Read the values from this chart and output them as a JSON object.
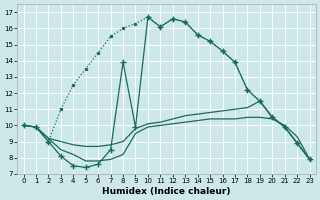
{
  "xlabel": "Humidex (Indice chaleur)",
  "x_ticks": [
    0,
    1,
    2,
    3,
    4,
    5,
    6,
    7,
    8,
    9,
    10,
    11,
    12,
    13,
    14,
    15,
    16,
    17,
    18,
    19,
    20,
    21,
    22,
    23
  ],
  "y_ticks": [
    7,
    8,
    9,
    10,
    11,
    12,
    13,
    14,
    15,
    16,
    17
  ],
  "xlim": [
    -0.5,
    23.5
  ],
  "ylim": [
    7.0,
    17.5
  ],
  "bg_color": "#cce8e8",
  "grid_color": "#ffffff",
  "line_color": "#1a6b60",
  "series": [
    {
      "x": [
        0,
        1,
        2,
        3,
        4,
        5,
        6,
        7,
        8,
        9,
        10,
        11,
        12,
        13,
        14,
        15,
        16,
        17,
        18,
        19,
        20,
        21,
        22,
        23
      ],
      "y": [
        10.0,
        9.9,
        9.0,
        11.0,
        12.5,
        13.5,
        14.5,
        15.5,
        16.0,
        16.3,
        16.7,
        16.1,
        16.6,
        16.4,
        15.6,
        15.2,
        14.6,
        13.9,
        12.2,
        11.5,
        10.5,
        9.9,
        8.9,
        7.9
      ],
      "marker": ".",
      "markersize": 3,
      "linestyle": ":"
    },
    {
      "x": [
        0,
        1,
        2,
        3,
        4,
        5,
        6,
        7,
        8,
        9,
        10,
        11,
        12,
        13,
        14,
        15,
        16,
        17,
        18,
        19,
        20,
        21,
        22,
        23
      ],
      "y": [
        10.0,
        9.9,
        9.0,
        8.1,
        7.5,
        7.4,
        7.6,
        8.5,
        13.9,
        9.9,
        16.7,
        16.1,
        16.6,
        16.4,
        15.6,
        15.2,
        14.6,
        13.9,
        12.2,
        11.5,
        10.5,
        9.9,
        8.9,
        7.9
      ],
      "marker": "+",
      "markersize": 4,
      "linestyle": "-"
    },
    {
      "x": [
        0,
        1,
        2,
        3,
        4,
        5,
        6,
        7,
        8,
        9,
        10,
        11,
        12,
        13,
        14,
        15,
        16,
        17,
        18,
        19,
        20,
        21,
        22,
        23
      ],
      "y": [
        10.0,
        9.9,
        9.2,
        9.0,
        8.8,
        8.7,
        8.7,
        8.8,
        9.0,
        9.8,
        10.1,
        10.2,
        10.4,
        10.6,
        10.7,
        10.8,
        10.9,
        11.0,
        11.1,
        11.5,
        10.5,
        9.9,
        8.9,
        7.9
      ],
      "marker": null,
      "markersize": 0,
      "linestyle": "-"
    },
    {
      "x": [
        0,
        1,
        2,
        3,
        4,
        5,
        6,
        7,
        8,
        9,
        10,
        11,
        12,
        13,
        14,
        15,
        16,
        17,
        18,
        19,
        20,
        21,
        22,
        23
      ],
      "y": [
        10.0,
        9.9,
        9.2,
        8.5,
        8.2,
        7.8,
        7.8,
        7.9,
        8.2,
        9.5,
        9.9,
        10.0,
        10.1,
        10.2,
        10.3,
        10.4,
        10.4,
        10.4,
        10.5,
        10.5,
        10.4,
        10.0,
        9.3,
        7.9
      ],
      "marker": null,
      "markersize": 0,
      "linestyle": "-"
    }
  ]
}
